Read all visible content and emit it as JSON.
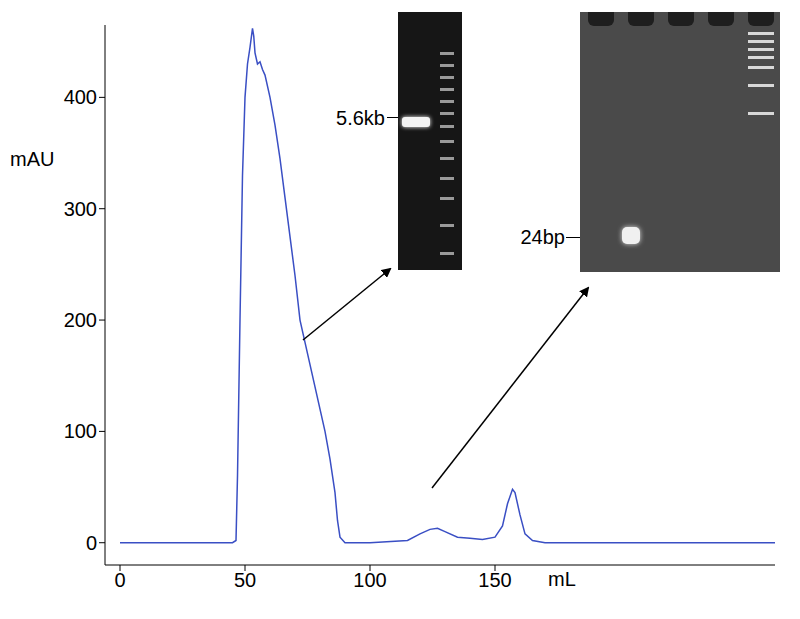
{
  "chart_data": {
    "type": "line",
    "x_label": "mL",
    "y_label": "mAU",
    "xlim": [
      -6,
      262
    ],
    "xticks": [
      0,
      50,
      100,
      150
    ],
    "ylim": [
      -20,
      465
    ],
    "yticks": [
      0,
      100,
      200,
      300,
      400
    ],
    "grid": false,
    "tick_labels": true,
    "series": [
      {
        "color": "#3a4fc4",
        "x": [
          0,
          40,
          45,
          46.4,
          47,
          48,
          49,
          50,
          51,
          52,
          53,
          53.5,
          54,
          55,
          56,
          57,
          58,
          60,
          62,
          64,
          66,
          68,
          70,
          72,
          74,
          76,
          78,
          80,
          82,
          84,
          86,
          87,
          88,
          90,
          100,
          115,
          120,
          124,
          127,
          130,
          135,
          140,
          145,
          150,
          153,
          155,
          157,
          158,
          160,
          162,
          165,
          170,
          200,
          262
        ],
        "values": [
          0,
          0,
          0,
          2,
          60,
          200,
          330,
          400,
          430,
          445,
          462,
          455,
          440,
          430,
          432,
          425,
          420,
          400,
          375,
          345,
          310,
          275,
          240,
          200,
          180,
          160,
          140,
          120,
          100,
          75,
          45,
          20,
          5,
          0,
          0,
          2,
          8,
          12,
          13,
          10,
          5,
          4,
          3,
          5,
          15,
          35,
          48,
          45,
          25,
          8,
          2,
          0,
          0,
          0
        ]
      }
    ],
    "annotations": [
      {
        "text": "5.6kb"
      },
      {
        "text": "24bp"
      }
    ]
  }
}
